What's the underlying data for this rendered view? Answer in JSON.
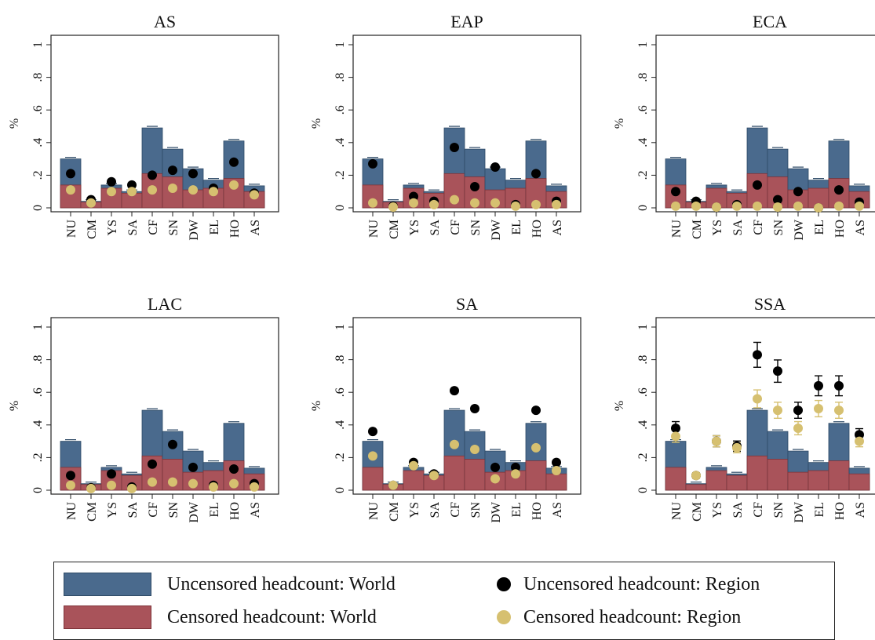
{
  "legend": {
    "uncensored_world": "Uncensored headcount: World",
    "censored_world": "Censored headcount: World",
    "uncensored_region": "Uncensored headcount: Region",
    "censored_region": "Censored headcount: Region"
  },
  "colors": {
    "uncensored_world": "#4a6a8d",
    "censored_world": "#a9535a",
    "uncensored_region": "#000000",
    "censored_region": "#d6c070"
  },
  "chart_data": [
    {
      "type": "bar",
      "title": "AS",
      "ylabel": "%",
      "ylim": [
        0,
        1
      ],
      "yticks": [
        0,
        0.2,
        0.4,
        0.6,
        0.8,
        1
      ],
      "ytick_labels": [
        "0",
        ".2",
        ".4",
        ".6",
        ".8",
        "1"
      ],
      "categories": [
        "NU",
        "CM",
        "YS",
        "SA",
        "CF",
        "SN",
        "DW",
        "EL",
        "HO",
        "AS"
      ],
      "series": [
        {
          "name": "Uncensored headcount: World",
          "values": [
            0.3,
            0.04,
            0.14,
            0.1,
            0.49,
            0.36,
            0.24,
            0.17,
            0.41,
            0.135
          ]
        },
        {
          "name": "Censored headcount: World",
          "values": [
            0.14,
            0.035,
            0.12,
            0.09,
            0.21,
            0.19,
            0.11,
            0.12,
            0.18,
            0.1
          ]
        },
        {
          "name": "Uncensored headcount: Region",
          "values": [
            0.21,
            0.05,
            0.16,
            0.14,
            0.2,
            0.23,
            0.21,
            0.12,
            0.28,
            0.09
          ]
        },
        {
          "name": "Censored headcount: Region",
          "values": [
            0.11,
            0.03,
            0.1,
            0.1,
            0.11,
            0.12,
            0.11,
            0.1,
            0.14,
            0.08
          ]
        }
      ]
    },
    {
      "type": "bar",
      "title": "EAP",
      "ylabel": "%",
      "ylim": [
        0,
        1
      ],
      "yticks": [
        0,
        0.2,
        0.4,
        0.6,
        0.8,
        1
      ],
      "ytick_labels": [
        "0",
        ".2",
        ".4",
        ".6",
        ".8",
        "1"
      ],
      "categories": [
        "NU",
        "CM",
        "YS",
        "SA",
        "CF",
        "SN",
        "DW",
        "EL",
        "HO",
        "AS"
      ],
      "series": [
        {
          "name": "Uncensored headcount: World",
          "values": [
            0.3,
            0.04,
            0.14,
            0.1,
            0.49,
            0.36,
            0.24,
            0.17,
            0.41,
            0.135
          ]
        },
        {
          "name": "Censored headcount: World",
          "values": [
            0.14,
            0.035,
            0.12,
            0.09,
            0.21,
            0.19,
            0.11,
            0.12,
            0.18,
            0.1
          ]
        },
        {
          "name": "Uncensored headcount: Region",
          "values": [
            0.27,
            0.01,
            0.07,
            0.04,
            0.37,
            0.13,
            0.25,
            0.02,
            0.21,
            0.04
          ]
        },
        {
          "name": "Censored headcount: Region",
          "values": [
            0.03,
            0.005,
            0.03,
            0.02,
            0.05,
            0.03,
            0.03,
            0.01,
            0.02,
            0.02
          ]
        }
      ]
    },
    {
      "type": "bar",
      "title": "ECA",
      "ylabel": "%",
      "ylim": [
        0,
        1
      ],
      "yticks": [
        0,
        0.2,
        0.4,
        0.6,
        0.8,
        1
      ],
      "ytick_labels": [
        "0",
        ".2",
        ".4",
        ".6",
        ".8",
        "1"
      ],
      "categories": [
        "NU",
        "CM",
        "YS",
        "SA",
        "CF",
        "SN",
        "DW",
        "EL",
        "HO",
        "AS"
      ],
      "series": [
        {
          "name": "Uncensored headcount: World",
          "values": [
            0.3,
            0.04,
            0.14,
            0.1,
            0.49,
            0.36,
            0.24,
            0.17,
            0.41,
            0.135
          ]
        },
        {
          "name": "Censored headcount: World",
          "values": [
            0.14,
            0.035,
            0.12,
            0.09,
            0.21,
            0.19,
            0.11,
            0.12,
            0.18,
            0.1
          ]
        },
        {
          "name": "Uncensored headcount: Region",
          "values": [
            0.1,
            0.04,
            0.005,
            0.02,
            0.14,
            0.05,
            0.1,
            0.0,
            0.11,
            0.035
          ]
        },
        {
          "name": "Censored headcount: Region",
          "values": [
            0.01,
            0.01,
            0.005,
            0.01,
            0.01,
            0.005,
            0.01,
            0.0,
            0.01,
            0.01
          ]
        }
      ]
    },
    {
      "type": "bar",
      "title": "LAC",
      "ylabel": "%",
      "ylim": [
        0,
        1
      ],
      "yticks": [
        0,
        0.2,
        0.4,
        0.6,
        0.8,
        1
      ],
      "ytick_labels": [
        "0",
        ".2",
        ".4",
        ".6",
        ".8",
        "1"
      ],
      "categories": [
        "NU",
        "CM",
        "YS",
        "SA",
        "CF",
        "SN",
        "DW",
        "EL",
        "HO",
        "AS"
      ],
      "series": [
        {
          "name": "Uncensored headcount: World",
          "values": [
            0.3,
            0.04,
            0.14,
            0.1,
            0.49,
            0.36,
            0.24,
            0.17,
            0.41,
            0.135
          ]
        },
        {
          "name": "Censored headcount: World",
          "values": [
            0.14,
            0.035,
            0.12,
            0.09,
            0.21,
            0.19,
            0.11,
            0.12,
            0.18,
            0.1
          ]
        },
        {
          "name": "Uncensored headcount: Region",
          "values": [
            0.09,
            0.015,
            0.1,
            0.02,
            0.16,
            0.28,
            0.14,
            0.03,
            0.13,
            0.04
          ]
        },
        {
          "name": "Censored headcount: Region",
          "values": [
            0.03,
            0.01,
            0.03,
            0.01,
            0.05,
            0.05,
            0.04,
            0.02,
            0.04,
            0.02
          ]
        }
      ]
    },
    {
      "type": "bar",
      "title": "SA",
      "ylabel": "%",
      "ylim": [
        0,
        1
      ],
      "yticks": [
        0,
        0.2,
        0.4,
        0.6,
        0.8,
        1
      ],
      "ytick_labels": [
        "0",
        ".2",
        ".4",
        ".6",
        ".8",
        "1"
      ],
      "categories": [
        "NU",
        "CM",
        "YS",
        "SA",
        "CF",
        "SN",
        "DW",
        "EL",
        "HO",
        "AS"
      ],
      "series": [
        {
          "name": "Uncensored headcount: World",
          "values": [
            0.3,
            0.04,
            0.14,
            0.1,
            0.49,
            0.36,
            0.24,
            0.17,
            0.41,
            0.135
          ]
        },
        {
          "name": "Censored headcount: World",
          "values": [
            0.14,
            0.035,
            0.12,
            0.09,
            0.21,
            0.19,
            0.11,
            0.12,
            0.18,
            0.1
          ]
        },
        {
          "name": "Uncensored headcount: Region",
          "values": [
            0.36,
            0.03,
            0.17,
            0.1,
            0.61,
            0.5,
            0.14,
            0.14,
            0.49,
            0.17
          ]
        },
        {
          "name": "Censored headcount: Region",
          "values": [
            0.21,
            0.03,
            0.15,
            0.09,
            0.28,
            0.25,
            0.07,
            0.1,
            0.26,
            0.12
          ]
        }
      ]
    },
    {
      "type": "bar",
      "title": "SSA",
      "ylabel": "%",
      "ylim": [
        0,
        1
      ],
      "yticks": [
        0,
        0.2,
        0.4,
        0.6,
        0.8,
        1
      ],
      "ytick_labels": [
        "0",
        ".2",
        ".4",
        ".6",
        ".8",
        "1"
      ],
      "categories": [
        "NU",
        "CM",
        "YS",
        "SA",
        "CF",
        "SN",
        "DW",
        "EL",
        "HO",
        "AS"
      ],
      "series": [
        {
          "name": "Uncensored headcount: World",
          "values": [
            0.3,
            0.04,
            0.14,
            0.1,
            0.49,
            0.36,
            0.24,
            0.17,
            0.41,
            0.135
          ]
        },
        {
          "name": "Censored headcount: World",
          "values": [
            0.14,
            0.035,
            0.12,
            0.09,
            0.21,
            0.19,
            0.11,
            0.12,
            0.18,
            0.1
          ]
        },
        {
          "name": "Uncensored headcount: Region",
          "values": [
            0.38,
            0.09,
            0.3,
            0.27,
            0.83,
            0.73,
            0.49,
            0.64,
            0.64,
            0.34
          ]
        },
        {
          "name": "Censored headcount: Region",
          "values": [
            0.33,
            0.09,
            0.3,
            0.26,
            0.56,
            0.49,
            0.38,
            0.5,
            0.49,
            0.3
          ]
        }
      ]
    }
  ]
}
